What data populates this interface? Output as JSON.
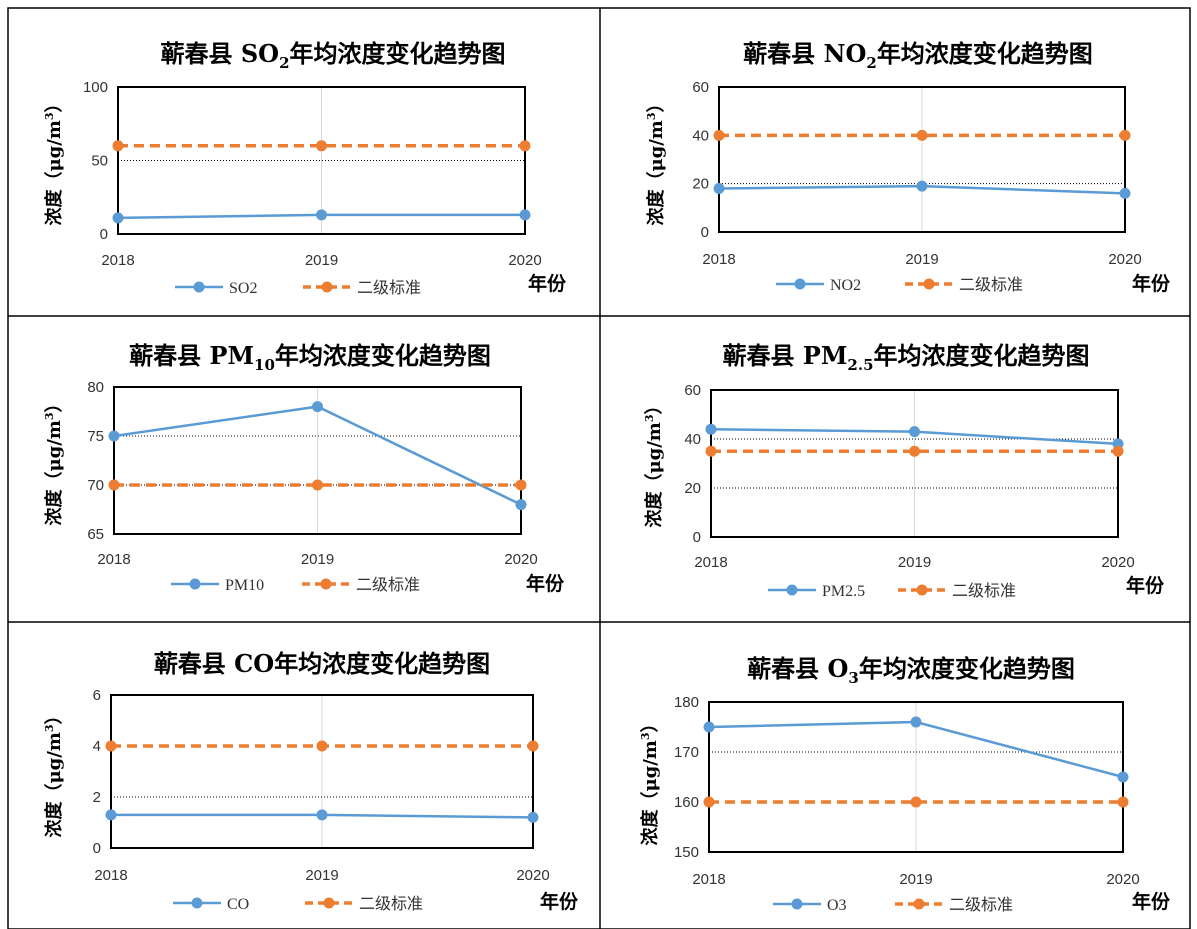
{
  "colors": {
    "series_line": "#5b9bd5",
    "standard_line": "#ed7d31",
    "plot_border": "#000000",
    "grid_dotted": "#000000",
    "vertical_grid": "#d9d9d9",
    "outer_border": "#000000"
  },
  "chart_data": [
    {
      "type": "line",
      "title": "蕲春县SO₂年均浓度变化趋势图",
      "title_parts": {
        "prefix": "蕲春县 SO",
        "sub": "2",
        "suffix": "年均浓度变化趋势图"
      },
      "x": [
        "2018",
        "2019",
        "2020"
      ],
      "xlabel": "年份",
      "ylabel": "浓度（μg/m³）",
      "ylabel_main": "浓度（μg/m",
      "ylabel_sup": "3",
      "ylabel_close": "）",
      "ylim": [
        0,
        100
      ],
      "yticks": [
        0,
        50,
        100
      ],
      "dotted_grid": [
        50
      ],
      "legend_position": "bottom",
      "series": [
        {
          "name": "SO2",
          "values": [
            11,
            13,
            13
          ]
        },
        {
          "name": "二级标准",
          "values": [
            60,
            60,
            60
          ]
        }
      ]
    },
    {
      "type": "line",
      "title": "蕲春县NO₂年均浓度变化趋势图",
      "title_parts": {
        "prefix": "蕲春县 NO",
        "sub": "2",
        "suffix": "年均浓度变化趋势图"
      },
      "x": [
        "2018",
        "2019",
        "2020"
      ],
      "xlabel": "年份",
      "ylabel": "浓度（μg/m³）",
      "ylabel_main": "浓度（μg/m",
      "ylabel_sup": "3",
      "ylabel_close": "）",
      "ylim": [
        0,
        60
      ],
      "yticks": [
        0,
        20,
        40,
        60
      ],
      "dotted_grid": [
        20
      ],
      "legend_position": "bottom",
      "series": [
        {
          "name": "NO2",
          "values": [
            18,
            19,
            16
          ]
        },
        {
          "name": "二级标准",
          "values": [
            40,
            40,
            40
          ]
        }
      ]
    },
    {
      "type": "line",
      "title": "蕲春县PM₁₀年均浓度变化趋势图",
      "title_parts": {
        "prefix": "蕲春县 PM",
        "sub": "10",
        "suffix": "年均浓度变化趋势图"
      },
      "x": [
        "2018",
        "2019",
        "2020"
      ],
      "xlabel": "年份",
      "ylabel": "浓度（μg/m³）",
      "ylabel_main": "浓度（μg/m",
      "ylabel_sup": "3",
      "ylabel_close": "）",
      "ylim": [
        65,
        80
      ],
      "yticks": [
        65,
        70,
        75,
        80
      ],
      "dotted_grid": [
        70,
        75
      ],
      "legend_position": "bottom",
      "series": [
        {
          "name": "PM10",
          "values": [
            75,
            78,
            68
          ]
        },
        {
          "name": "二级标准",
          "values": [
            70,
            70,
            70
          ]
        }
      ]
    },
    {
      "type": "line",
      "title": "蕲春县PM₂.₅年均浓度变化趋势图",
      "title_parts": {
        "prefix": "蕲春县 PM",
        "sub": "2.5",
        "suffix": "年均浓度变化趋势图"
      },
      "x": [
        "2018",
        "2019",
        "2020"
      ],
      "xlabel": "年份",
      "ylabel": "浓度（μg/m³）",
      "ylabel_main": "浓度（μg/m",
      "ylabel_sup": "3",
      "ylabel_close": "）",
      "ylim": [
        0,
        60
      ],
      "yticks": [
        0,
        20,
        40,
        60
      ],
      "dotted_grid": [
        20,
        40
      ],
      "legend_position": "bottom",
      "series": [
        {
          "name": "PM2.5",
          "values": [
            44,
            43,
            38
          ]
        },
        {
          "name": "二级标准",
          "values": [
            35,
            35,
            35
          ]
        }
      ]
    },
    {
      "type": "line",
      "title": "蕲春县CO年均浓度变化趋势图",
      "title_parts": {
        "prefix": "蕲春县 CO",
        "sub": "",
        "suffix": "年均浓度变化趋势图"
      },
      "x": [
        "2018",
        "2019",
        "2020"
      ],
      "xlabel": "年份",
      "ylabel": "浓度（μg/m³）",
      "ylabel_main": "浓度（μg/m",
      "ylabel_sup": "3",
      "ylabel_close": "）",
      "ylim": [
        0,
        6
      ],
      "yticks": [
        0,
        2,
        4,
        6
      ],
      "dotted_grid": [
        2
      ],
      "legend_position": "bottom",
      "series": [
        {
          "name": "CO",
          "values": [
            1.3,
            1.3,
            1.2
          ]
        },
        {
          "name": "二级标准",
          "values": [
            4,
            4,
            4
          ]
        }
      ]
    },
    {
      "type": "line",
      "title": "蕲春县O₃年均浓度变化趋势图",
      "title_parts": {
        "prefix": "蕲春县 O",
        "sub": "3",
        "suffix": "年均浓度变化趋势图"
      },
      "x": [
        "2018",
        "2019",
        "2020"
      ],
      "xlabel": "年份",
      "ylabel": "浓度（μg/m³）",
      "ylabel_main": "浓度（μg/m",
      "ylabel_sup": "3",
      "ylabel_close": "）",
      "ylim": [
        150,
        180
      ],
      "yticks": [
        150,
        160,
        170,
        180
      ],
      "dotted_grid": [
        170
      ],
      "legend_position": "bottom",
      "series": [
        {
          "name": "O3",
          "values": [
            175,
            176,
            165
          ]
        },
        {
          "name": "二级标准",
          "values": [
            160,
            160,
            160
          ]
        }
      ]
    }
  ]
}
